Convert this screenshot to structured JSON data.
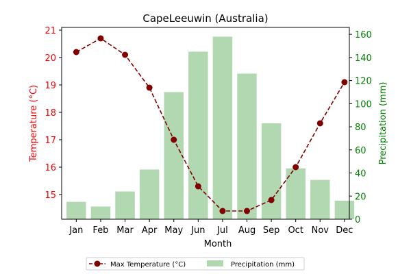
{
  "chart_data": {
    "type": "bar",
    "title": "CapeLeeuwin (Australia)",
    "xlabel": "Month",
    "ylabel_left": "Temperature (°C)",
    "ylabel_right": "Precipitation (mm)",
    "categories": [
      "Jan",
      "Feb",
      "Mar",
      "Apr",
      "May",
      "Jun",
      "Jul",
      "Aug",
      "Sep",
      "Oct",
      "Nov",
      "Dec"
    ],
    "ylim_left": [
      14.1,
      21.1
    ],
    "yticks_left": [
      15,
      16,
      17,
      18,
      19,
      20,
      21
    ],
    "ylim_right": [
      0,
      166
    ],
    "yticks_right": [
      0,
      20,
      40,
      60,
      80,
      100,
      120,
      140,
      160
    ],
    "series": [
      {
        "name": "Max Temperature (°C)",
        "kind": "line",
        "axis": "left",
        "style": "dashed",
        "marker": "circle",
        "color": "#800000",
        "values": [
          20.2,
          20.7,
          20.1,
          18.9,
          17.0,
          15.3,
          14.4,
          14.4,
          14.8,
          16.0,
          17.6,
          19.1
        ]
      },
      {
        "name": "Precipitation (mm)",
        "kind": "bar",
        "axis": "right",
        "color": "#b2d8b2",
        "values": [
          15,
          11,
          24,
          43,
          110,
          145,
          158,
          126,
          83,
          44,
          34,
          16
        ]
      }
    ],
    "left_axis_color": "#ff0000",
    "right_axis_color": "#008000",
    "legend_position": "bottom-center",
    "grid": false
  }
}
